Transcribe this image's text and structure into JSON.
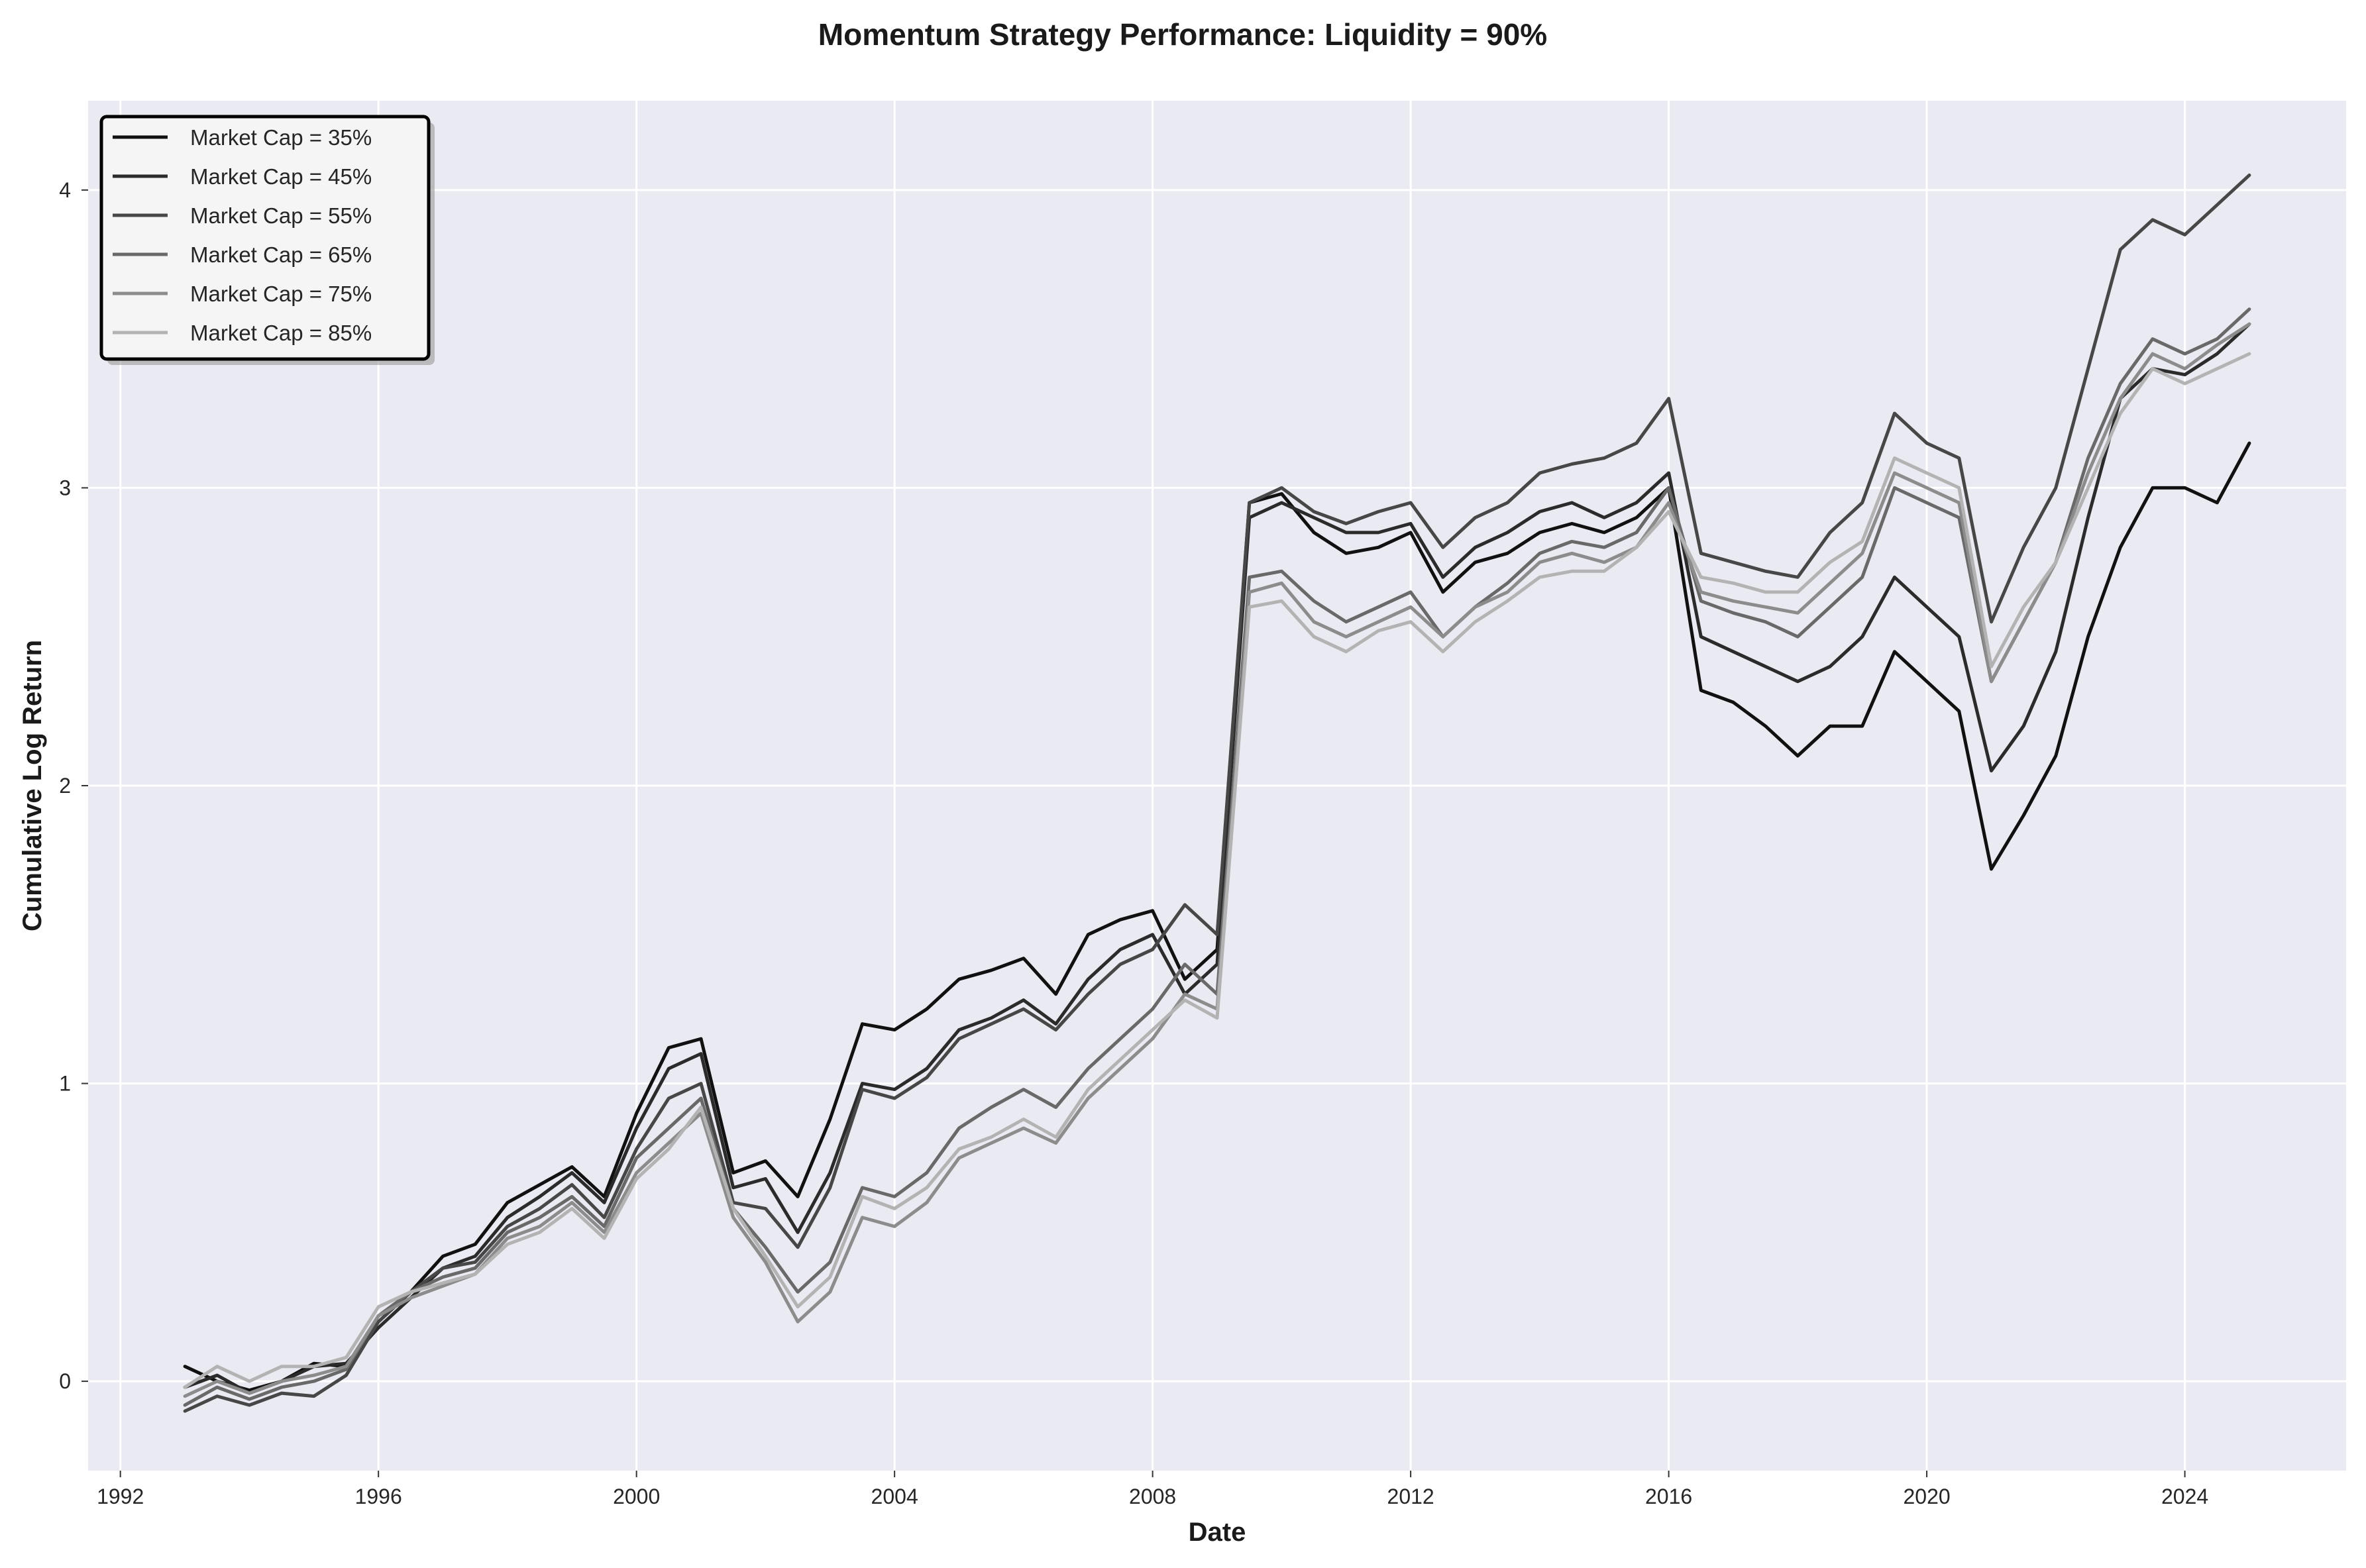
{
  "chart_data": {
    "type": "line",
    "title": "Momentum Strategy Performance: Liquidity = 90%",
    "xlabel": "Date",
    "ylabel": "Cumulative Log Return",
    "xlim": [
      1991.5,
      2026.5
    ],
    "ylim": [
      -0.3,
      4.3
    ],
    "x_ticks": [
      1992,
      1996,
      2000,
      2004,
      2008,
      2012,
      2016,
      2020,
      2024
    ],
    "y_ticks": [
      0,
      1,
      2,
      3,
      4
    ],
    "grid": true,
    "legend_position": "top-left",
    "x_values": [
      1993.0,
      1993.5,
      1994.0,
      1994.5,
      1995.0,
      1995.5,
      1996.0,
      1996.5,
      1997.0,
      1997.5,
      1998.0,
      1998.5,
      1999.0,
      1999.5,
      2000.0,
      2000.5,
      2001.0,
      2001.5,
      2002.0,
      2002.5,
      2003.0,
      2003.5,
      2004.0,
      2004.5,
      2005.0,
      2005.5,
      2006.0,
      2006.5,
      2007.0,
      2007.5,
      2008.0,
      2008.5,
      2009.0,
      2009.5,
      2010.0,
      2010.5,
      2011.0,
      2011.5,
      2012.0,
      2012.5,
      2013.0,
      2013.5,
      2014.0,
      2014.5,
      2015.0,
      2015.5,
      2016.0,
      2016.5,
      2017.0,
      2017.5,
      2018.0,
      2018.5,
      2019.0,
      2019.5,
      2020.0,
      2020.5,
      2021.0,
      2021.5,
      2022.0,
      2022.5,
      2023.0,
      2023.5,
      2024.0,
      2024.5,
      2025.0
    ],
    "series": [
      {
        "name": "Market Cap = 35%",
        "color": "#111111",
        "values": [
          0.05,
          0.0,
          -0.03,
          0.0,
          0.06,
          0.05,
          0.2,
          0.3,
          0.42,
          0.46,
          0.6,
          0.66,
          0.72,
          0.62,
          0.9,
          1.12,
          1.15,
          0.7,
          0.74,
          0.62,
          0.88,
          1.2,
          1.18,
          1.25,
          1.35,
          1.38,
          1.42,
          1.3,
          1.5,
          1.55,
          1.58,
          1.35,
          1.45,
          2.95,
          2.98,
          2.85,
          2.78,
          2.8,
          2.85,
          2.65,
          2.75,
          2.78,
          2.85,
          2.88,
          2.85,
          2.9,
          3.0,
          2.32,
          2.28,
          2.2,
          2.1,
          2.2,
          2.2,
          2.45,
          2.35,
          2.25,
          1.72,
          1.9,
          2.1,
          2.5,
          2.8,
          3.0,
          3.0,
          2.95,
          3.15
        ]
      },
      {
        "name": "Market Cap = 45%",
        "color": "#2b2b2b",
        "values": [
          -0.02,
          0.02,
          -0.04,
          0.0,
          0.05,
          0.06,
          0.18,
          0.28,
          0.38,
          0.42,
          0.55,
          0.62,
          0.7,
          0.6,
          0.85,
          1.05,
          1.1,
          0.65,
          0.68,
          0.5,
          0.7,
          1.0,
          0.98,
          1.05,
          1.18,
          1.22,
          1.28,
          1.2,
          1.35,
          1.45,
          1.5,
          1.3,
          1.4,
          2.9,
          2.95,
          2.9,
          2.85,
          2.85,
          2.88,
          2.7,
          2.8,
          2.85,
          2.92,
          2.95,
          2.9,
          2.95,
          3.05,
          2.5,
          2.45,
          2.4,
          2.35,
          2.4,
          2.5,
          2.7,
          2.6,
          2.5,
          2.05,
          2.2,
          2.45,
          2.9,
          3.3,
          3.4,
          3.38,
          3.45,
          3.55
        ]
      },
      {
        "name": "Market Cap = 55%",
        "color": "#474747",
        "values": [
          -0.1,
          -0.05,
          -0.08,
          -0.04,
          -0.05,
          0.02,
          0.2,
          0.3,
          0.38,
          0.4,
          0.52,
          0.58,
          0.66,
          0.55,
          0.78,
          0.95,
          1.0,
          0.6,
          0.58,
          0.45,
          0.65,
          0.98,
          0.95,
          1.02,
          1.15,
          1.2,
          1.25,
          1.18,
          1.3,
          1.4,
          1.45,
          1.6,
          1.5,
          2.95,
          3.0,
          2.92,
          2.88,
          2.92,
          2.95,
          2.8,
          2.9,
          2.95,
          3.05,
          3.08,
          3.1,
          3.15,
          3.3,
          2.78,
          2.75,
          2.72,
          2.7,
          2.85,
          2.95,
          3.25,
          3.15,
          3.1,
          2.55,
          2.8,
          3.0,
          3.4,
          3.8,
          3.9,
          3.85,
          3.95,
          4.05
        ]
      },
      {
        "name": "Market Cap = 65%",
        "color": "#696969",
        "values": [
          -0.08,
          -0.02,
          -0.06,
          -0.02,
          0.0,
          0.04,
          0.22,
          0.3,
          0.35,
          0.38,
          0.5,
          0.55,
          0.62,
          0.52,
          0.75,
          0.85,
          0.95,
          0.58,
          0.45,
          0.3,
          0.4,
          0.65,
          0.62,
          0.7,
          0.85,
          0.92,
          0.98,
          0.92,
          1.05,
          1.15,
          1.25,
          1.4,
          1.3,
          2.7,
          2.72,
          2.62,
          2.55,
          2.6,
          2.65,
          2.5,
          2.6,
          2.68,
          2.78,
          2.82,
          2.8,
          2.85,
          3.0,
          2.62,
          2.58,
          2.55,
          2.5,
          2.6,
          2.7,
          3.0,
          2.95,
          2.9,
          2.35,
          2.55,
          2.75,
          3.1,
          3.35,
          3.5,
          3.45,
          3.5,
          3.6
        ]
      },
      {
        "name": "Market Cap = 75%",
        "color": "#8c8c8c",
        "values": [
          -0.05,
          0.0,
          -0.04,
          0.0,
          0.02,
          0.05,
          0.22,
          0.28,
          0.32,
          0.36,
          0.48,
          0.52,
          0.6,
          0.5,
          0.7,
          0.8,
          0.9,
          0.55,
          0.4,
          0.2,
          0.3,
          0.55,
          0.52,
          0.6,
          0.75,
          0.8,
          0.85,
          0.8,
          0.95,
          1.05,
          1.15,
          1.3,
          1.25,
          2.65,
          2.68,
          2.55,
          2.5,
          2.55,
          2.6,
          2.5,
          2.6,
          2.65,
          2.75,
          2.78,
          2.75,
          2.8,
          2.95,
          2.65,
          2.62,
          2.6,
          2.58,
          2.68,
          2.78,
          3.05,
          3.0,
          2.95,
          2.35,
          2.55,
          2.75,
          3.05,
          3.3,
          3.45,
          3.4,
          3.48,
          3.55
        ]
      },
      {
        "name": "Market Cap = 85%",
        "color": "#b3b3b3",
        "values": [
          -0.02,
          0.05,
          0.0,
          0.05,
          0.05,
          0.08,
          0.25,
          0.3,
          0.33,
          0.36,
          0.46,
          0.5,
          0.58,
          0.48,
          0.68,
          0.78,
          0.92,
          0.58,
          0.42,
          0.25,
          0.35,
          0.62,
          0.58,
          0.65,
          0.78,
          0.82,
          0.88,
          0.82,
          0.98,
          1.08,
          1.18,
          1.28,
          1.22,
          2.6,
          2.62,
          2.5,
          2.45,
          2.52,
          2.55,
          2.45,
          2.55,
          2.62,
          2.7,
          2.72,
          2.72,
          2.8,
          2.92,
          2.7,
          2.68,
          2.65,
          2.65,
          2.75,
          2.82,
          3.1,
          3.05,
          3.0,
          2.4,
          2.6,
          2.75,
          3.0,
          3.25,
          3.4,
          3.35,
          3.4,
          3.45
        ]
      }
    ]
  }
}
